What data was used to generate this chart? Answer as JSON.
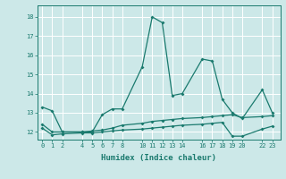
{
  "xlabel": "Humidex (Indice chaleur)",
  "ylabel": "",
  "bg_color": "#cce8e8",
  "grid_color": "#ffffff",
  "line_color": "#1a7a6e",
  "xlim": [
    -0.5,
    23.8
  ],
  "ylim": [
    11.6,
    18.6
  ],
  "xticks": [
    0,
    1,
    2,
    4,
    5,
    6,
    7,
    8,
    10,
    11,
    12,
    13,
    14,
    16,
    17,
    18,
    19,
    20,
    22,
    23
  ],
  "yticks": [
    12,
    13,
    14,
    15,
    16,
    17,
    18
  ],
  "series1_x": [
    0,
    1,
    2,
    4,
    5,
    6,
    7,
    8,
    10,
    11,
    12,
    13,
    14,
    16,
    17,
    18,
    19,
    20,
    22,
    23
  ],
  "series1_y": [
    13.3,
    13.1,
    12.0,
    12.0,
    12.0,
    12.9,
    13.2,
    13.2,
    15.4,
    18.0,
    17.7,
    13.9,
    14.0,
    15.8,
    15.7,
    13.7,
    13.0,
    12.7,
    14.2,
    13.0
  ],
  "series2_x": [
    0,
    1,
    2,
    4,
    5,
    6,
    7,
    8,
    10,
    11,
    12,
    13,
    14,
    16,
    17,
    18,
    19,
    20,
    22,
    23
  ],
  "series2_y": [
    12.4,
    12.0,
    12.0,
    12.0,
    12.05,
    12.1,
    12.2,
    12.35,
    12.45,
    12.55,
    12.6,
    12.65,
    12.7,
    12.75,
    12.8,
    12.85,
    12.9,
    12.75,
    12.8,
    12.85
  ],
  "series3_x": [
    0,
    1,
    2,
    4,
    5,
    6,
    7,
    8,
    10,
    11,
    12,
    13,
    14,
    16,
    17,
    18,
    19,
    20,
    22,
    23
  ],
  "series3_y": [
    12.2,
    11.85,
    11.9,
    11.95,
    11.95,
    12.0,
    12.05,
    12.1,
    12.15,
    12.2,
    12.25,
    12.3,
    12.35,
    12.4,
    12.45,
    12.5,
    11.78,
    11.78,
    12.15,
    12.3
  ]
}
